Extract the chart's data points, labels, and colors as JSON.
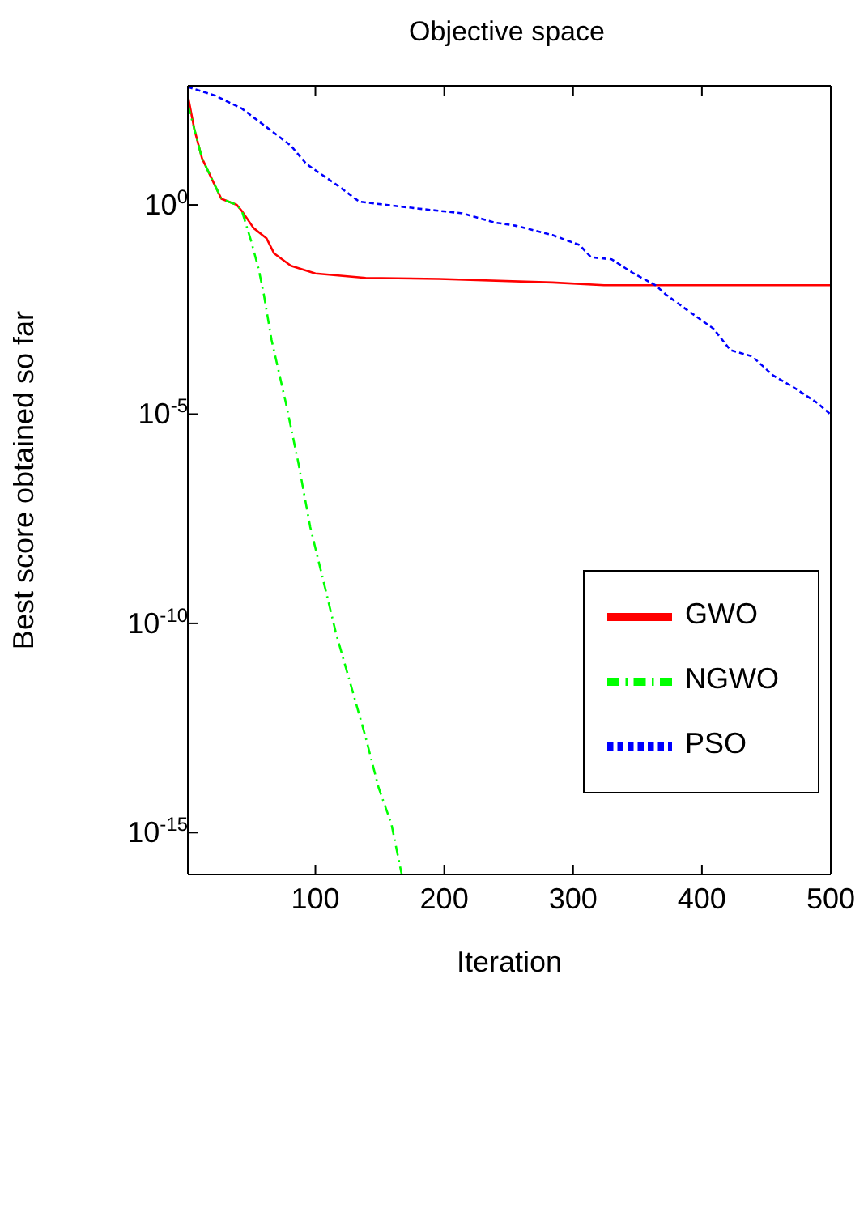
{
  "chart_data": {
    "type": "line",
    "title": "Objective space",
    "xlabel": "Iteration",
    "ylabel": "Best score obtained so far",
    "log": "y",
    "xlim": [
      1,
      500
    ],
    "xticks": [
      100,
      200,
      300,
      400,
      500
    ],
    "ylim": [
      1e-16,
      700
    ],
    "yticks": [
      {
        "value": 1,
        "label": "10$^{0}$"
      },
      {
        "value": 1e-05,
        "label": "10$^{-5}$"
      },
      {
        "value": 1e-10,
        "label": "10$^{-10}$"
      },
      {
        "value": 1e-15,
        "label": "10$^{-15}$"
      }
    ],
    "grid": false,
    "legend": "right",
    "marker": "none",
    "series": [
      {
        "name": "GWO",
        "color": "#ff0000",
        "line_style": "solid",
        "x": [
          1,
          6,
          12,
          21,
          27,
          39,
          43,
          52,
          62,
          68,
          81,
          100,
          139,
          196,
          284,
          324,
          500
        ],
        "values": [
          410,
          65,
          13,
          3.4,
          1.4,
          1,
          0.71,
          0.28,
          0.16,
          0.069,
          0.035,
          0.023,
          0.018,
          0.017,
          0.014,
          0.012,
          0.012
        ]
      },
      {
        "name": "NGWO",
        "color": "#00ff00",
        "line_style": "dashed",
        "x": [
          1,
          6,
          12,
          21,
          27,
          39,
          43,
          50,
          56,
          60,
          66,
          77,
          87,
          96,
          106,
          116,
          127,
          139,
          149,
          159,
          167
        ],
        "values": [
          250,
          65,
          13,
          3.4,
          1.4,
          1,
          0.71,
          0.14,
          0.029,
          0.0072,
          0.00059,
          1.9e-05,
          6.3e-07,
          2e-08,
          1.1e-09,
          5.8e-11,
          3.8e-12,
          1.9e-13,
          1.2e-14,
          1.6e-15,
          1e-16
        ]
      },
      {
        "name": "PSO",
        "color": "#0000ff",
        "line_style": "dotted",
        "x": [
          1,
          22,
          43,
          64,
          81,
          93,
          118,
          134,
          155,
          189,
          214,
          239,
          255,
          284,
          305,
          314,
          330,
          347,
          364,
          372,
          389,
          409,
          422,
          439,
          455,
          471,
          489,
          500
        ],
        "values": [
          660,
          410,
          200,
          65,
          26,
          9.5,
          2.8,
          1.2,
          1,
          0.76,
          0.63,
          0.38,
          0.32,
          0.19,
          0.11,
          0.056,
          0.05,
          0.023,
          0.012,
          0.0072,
          0.003,
          0.0011,
          0.00034,
          0.00024,
          8.5e-05,
          4.4e-05,
          1.9e-05,
          9.8e-06
        ]
      }
    ]
  }
}
